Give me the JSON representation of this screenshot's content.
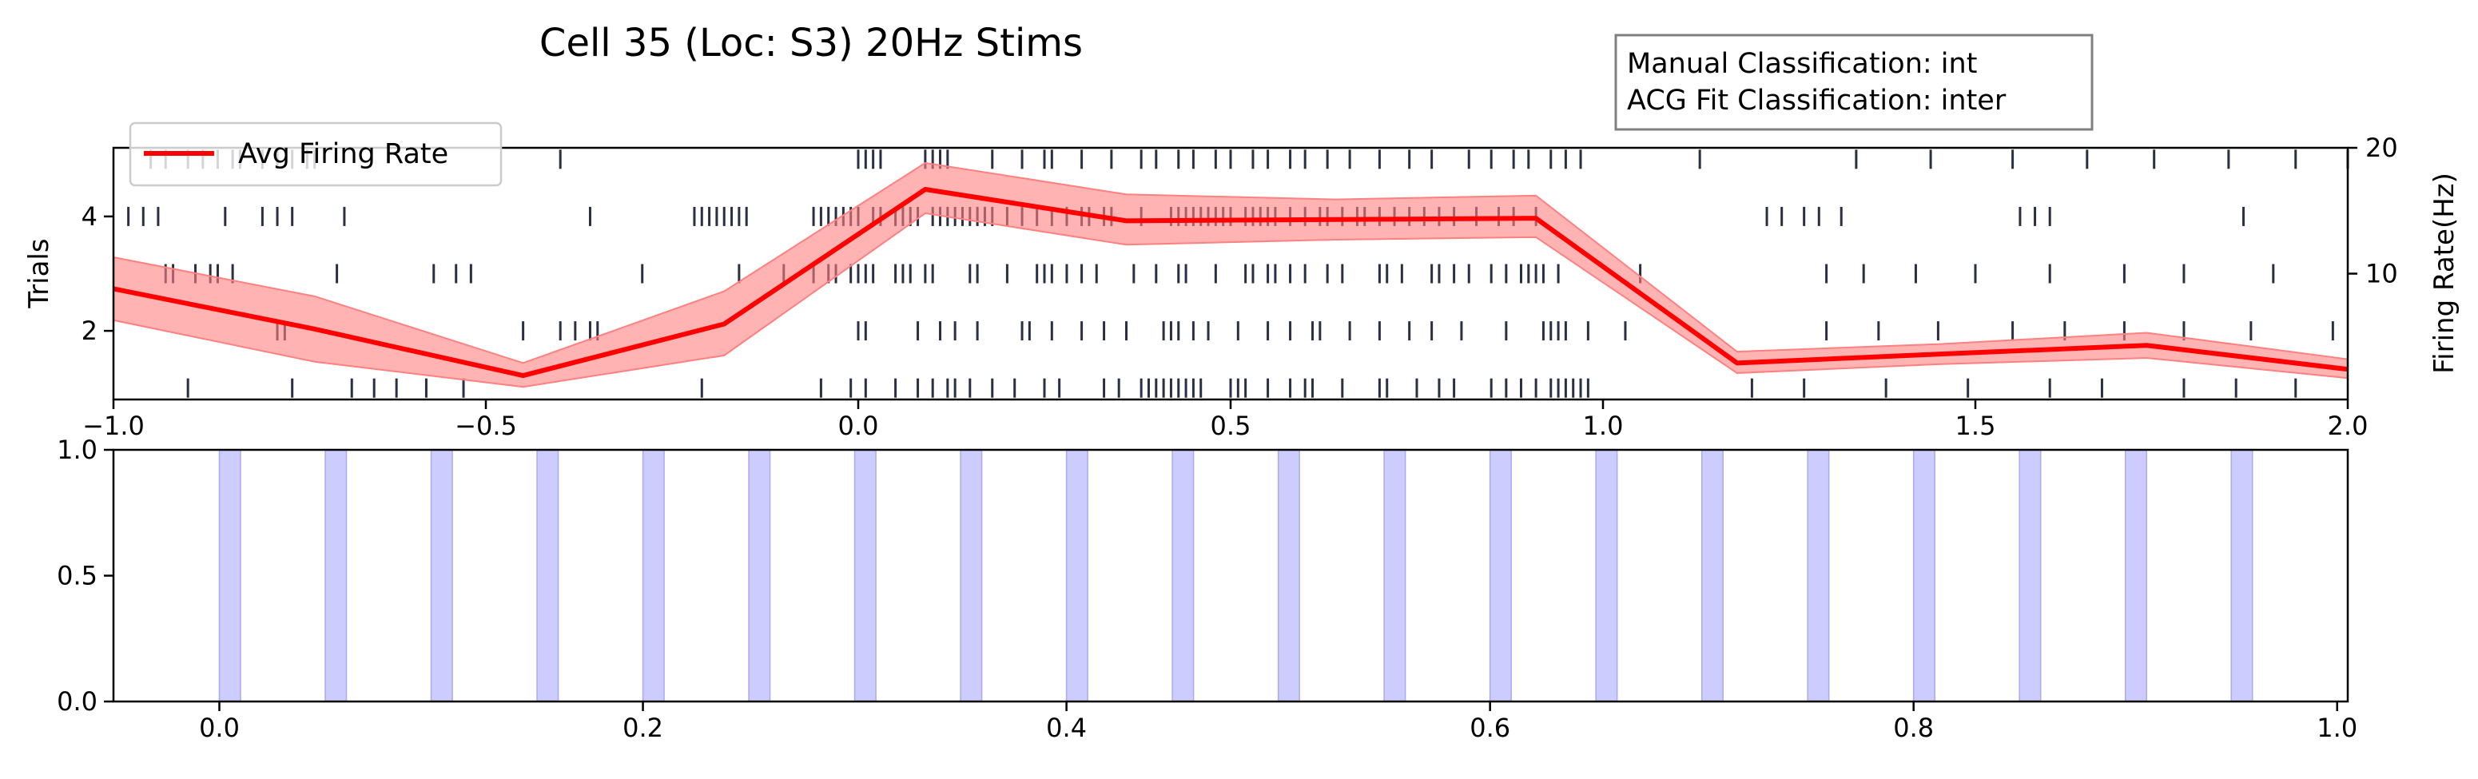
{
  "chart_data": [
    {
      "type": "line",
      "title": "Cell 35 (Loc: S3) 20Hz Stims",
      "annotation": [
        "Manual Classification: int",
        "ACG Fit Classification: inter"
      ],
      "ylabel": "Trials",
      "y2label": "Firing Rate(Hz)",
      "xlim": [
        -1.0,
        2.0
      ],
      "ylim": [
        0.8,
        5.2
      ],
      "y2lim": [
        0,
        20
      ],
      "xticks": [
        "−1.0",
        "−0.5",
        "0.0",
        "0.5",
        "1.0",
        "1.5",
        "2.0"
      ],
      "xtick_values": [
        -1.0,
        -0.5,
        0.0,
        0.5,
        1.0,
        1.5,
        2.0
      ],
      "yticks": [
        "2",
        "4"
      ],
      "ytick_values": [
        2,
        4
      ],
      "y2ticks": [
        "10",
        "20"
      ],
      "y2tick_values": [
        10,
        20
      ],
      "legend": {
        "placement": "top-left",
        "entries": [
          "Avg Firing Rate"
        ]
      },
      "series": [
        {
          "name": "Avg Firing Rate",
          "color": "#ff0000",
          "band_color": "#ff8080",
          "x": [
            -1.0,
            -0.73,
            -0.45,
            -0.18,
            0.09,
            0.36,
            0.64,
            0.91,
            1.18,
            1.45,
            1.73,
            2.0
          ],
          "y": [
            8.8,
            5.6,
            1.9,
            6.0,
            16.7,
            14.2,
            14.3,
            14.4,
            2.9,
            3.6,
            4.3,
            2.4
          ],
          "y_low": [
            6.3,
            3.0,
            1.0,
            3.5,
            14.8,
            12.3,
            12.7,
            12.9,
            2.1,
            2.8,
            3.3,
            1.7
          ],
          "y_high": [
            11.3,
            8.2,
            2.9,
            8.6,
            18.8,
            16.3,
            15.9,
            16.2,
            3.8,
            4.4,
            5.3,
            3.2
          ]
        }
      ],
      "raster": {
        "color": "#2b2f44",
        "trials": [
          {
            "trial": 1,
            "spikes": [
              -0.9,
              -0.76,
              -0.68,
              -0.65,
              -0.62,
              -0.58,
              -0.53,
              -0.21,
              -0.05,
              -0.01,
              0.01,
              0.05,
              0.08,
              0.1,
              0.12,
              0.13,
              0.15,
              0.18,
              0.21,
              0.25,
              0.27,
              0.33,
              0.35,
              0.38,
              0.39,
              0.4,
              0.41,
              0.42,
              0.43,
              0.44,
              0.45,
              0.46,
              0.5,
              0.51,
              0.52,
              0.55,
              0.58,
              0.6,
              0.61,
              0.65,
              0.7,
              0.71,
              0.75,
              0.78,
              0.8,
              0.85,
              0.87,
              0.89,
              0.91,
              0.93,
              0.94,
              0.95,
              0.96,
              0.97,
              0.98,
              1.2,
              1.27,
              1.38,
              1.49,
              1.6,
              1.67,
              1.78,
              1.85,
              1.93
            ]
          },
          {
            "trial": 2,
            "spikes": [
              -0.78,
              -0.77,
              -0.45,
              -0.4,
              -0.38,
              -0.36,
              -0.35,
              0.0,
              0.01,
              0.08,
              0.11,
              0.13,
              0.16,
              0.22,
              0.23,
              0.26,
              0.3,
              0.33,
              0.36,
              0.41,
              0.42,
              0.43,
              0.45,
              0.47,
              0.51,
              0.55,
              0.58,
              0.61,
              0.62,
              0.66,
              0.7,
              0.74,
              0.77,
              0.81,
              0.87,
              0.92,
              0.93,
              0.94,
              0.95,
              0.98,
              1.03,
              1.3,
              1.37,
              1.45,
              1.55,
              1.62,
              1.7,
              1.78,
              1.87,
              1.98
            ]
          },
          {
            "trial": 3,
            "spikes": [
              -0.93,
              -0.92,
              -0.89,
              -0.87,
              -0.86,
              -0.84,
              -0.7,
              -0.57,
              -0.54,
              -0.52,
              -0.29,
              -0.16,
              -0.1,
              -0.06,
              -0.04,
              -0.03,
              -0.01,
              0.0,
              0.01,
              0.02,
              0.05,
              0.06,
              0.07,
              0.09,
              0.1,
              0.15,
              0.16,
              0.2,
              0.24,
              0.25,
              0.26,
              0.28,
              0.3,
              0.32,
              0.37,
              0.4,
              0.43,
              0.44,
              0.48,
              0.52,
              0.53,
              0.55,
              0.56,
              0.58,
              0.6,
              0.63,
              0.65,
              0.7,
              0.71,
              0.73,
              0.77,
              0.78,
              0.8,
              0.82,
              0.85,
              0.87,
              0.89,
              0.9,
              0.91,
              0.92,
              0.94,
              1.05,
              1.3,
              1.35,
              1.42,
              1.5,
              1.6,
              1.7,
              1.78,
              1.9
            ]
          },
          {
            "trial": 4,
            "spikes": [
              -0.98,
              -0.96,
              -0.94,
              -0.85,
              -0.8,
              -0.78,
              -0.76,
              -0.69,
              -0.36,
              -0.22,
              -0.21,
              -0.2,
              -0.19,
              -0.18,
              -0.17,
              -0.16,
              -0.15,
              -0.06,
              -0.05,
              -0.04,
              -0.03,
              -0.02,
              -0.01,
              0.0,
              0.02,
              0.03,
              0.05,
              0.06,
              0.07,
              0.08,
              0.1,
              0.11,
              0.12,
              0.13,
              0.14,
              0.15,
              0.16,
              0.17,
              0.18,
              0.2,
              0.22,
              0.24,
              0.26,
              0.28,
              0.3,
              0.31,
              0.33,
              0.34,
              0.38,
              0.42,
              0.43,
              0.44,
              0.45,
              0.46,
              0.47,
              0.48,
              0.49,
              0.5,
              0.52,
              0.53,
              0.54,
              0.55,
              0.56,
              0.58,
              0.6,
              0.62,
              0.63,
              0.65,
              0.67,
              0.68,
              0.7,
              0.72,
              0.74,
              0.76,
              0.78,
              0.8,
              0.83,
              0.86,
              0.88,
              0.91,
              1.22,
              1.24,
              1.27,
              1.29,
              1.32,
              1.56,
              1.58,
              1.6,
              1.86
            ]
          },
          {
            "trial": 5,
            "spikes": [
              -0.95,
              -0.93,
              -0.9,
              -0.88,
              -0.86,
              -0.84,
              -0.83,
              -0.8,
              -0.78,
              -0.76,
              -0.74,
              -0.73,
              -0.4,
              0.0,
              0.01,
              0.02,
              0.03,
              0.09,
              0.1,
              0.11,
              0.12,
              0.18,
              0.22,
              0.25,
              0.26,
              0.3,
              0.34,
              0.38,
              0.4,
              0.43,
              0.45,
              0.48,
              0.5,
              0.53,
              0.55,
              0.58,
              0.6,
              0.63,
              0.66,
              0.7,
              0.74,
              0.77,
              0.82,
              0.85,
              0.88,
              0.9,
              0.93,
              0.95,
              0.97,
              1.13,
              1.34,
              1.44,
              1.55,
              1.65,
              1.74,
              1.84,
              1.93,
              2.0
            ]
          }
        ]
      }
    },
    {
      "type": "bar",
      "xlim": [
        -0.05,
        1.005
      ],
      "ylim": [
        0.0,
        1.0
      ],
      "xticks": [
        "0.0",
        "0.2",
        "0.4",
        "0.6",
        "0.8",
        "1.0"
      ],
      "xtick_values": [
        0.0,
        0.2,
        0.4,
        0.6,
        0.8,
        1.0
      ],
      "yticks": [
        "0.0",
        "0.5",
        "1.0"
      ],
      "ytick_values": [
        0.0,
        0.5,
        1.0
      ],
      "stim_color": "#ccccff",
      "stim_width": 0.01,
      "stim_onsets": [
        0.0,
        0.05,
        0.1,
        0.15,
        0.2,
        0.25,
        0.3,
        0.35,
        0.4,
        0.45,
        0.5,
        0.55,
        0.6,
        0.65,
        0.7,
        0.75,
        0.8,
        0.85,
        0.9,
        0.95
      ]
    }
  ]
}
